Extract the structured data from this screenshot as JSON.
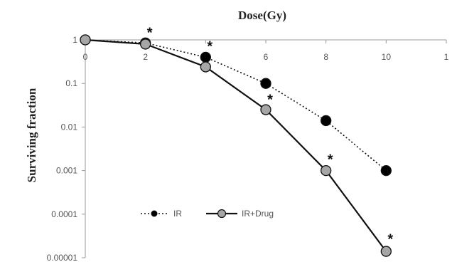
{
  "chart_data": {
    "type": "line",
    "title": "Dose(Gy)",
    "ylabel": "Surviving fraction",
    "xlabel": "",
    "x_ticks": [
      "0",
      "2",
      "4",
      "6",
      "8",
      "10",
      "1"
    ],
    "xlim": [
      0,
      12
    ],
    "y_scale": "log",
    "y_ticks": [
      "1",
      "0.1",
      "0.01",
      "0.001",
      "0.0001",
      "0.00001"
    ],
    "ylim": [
      1e-05,
      1
    ],
    "x_axis_position": "top",
    "grid": false,
    "legend_position": "bottom-center",
    "series": [
      {
        "name": "IR",
        "line_style": "dotted",
        "marker_color": "#000000",
        "x": [
          0,
          2,
          4,
          6,
          8,
          10
        ],
        "y": [
          1,
          0.85,
          0.4,
          0.1,
          0.014,
          0.001
        ]
      },
      {
        "name": "IR+Drug",
        "line_style": "solid",
        "marker_color": "#a6a6a6",
        "x": [
          0,
          2,
          4,
          6,
          8,
          10
        ],
        "y": [
          1,
          0.8,
          0.24,
          0.025,
          0.001,
          1.4e-05
        ]
      }
    ],
    "annotations": [
      {
        "text": "*",
        "x": 2,
        "y": 1.55
      },
      {
        "text": "*",
        "x": 4,
        "y": 0.75
      },
      {
        "text": "*",
        "x": 6,
        "y": 0.045
      },
      {
        "text": "*",
        "x": 8,
        "y": 0.0019
      },
      {
        "text": "*",
        "x": 10,
        "y": 2.8e-05
      }
    ]
  }
}
